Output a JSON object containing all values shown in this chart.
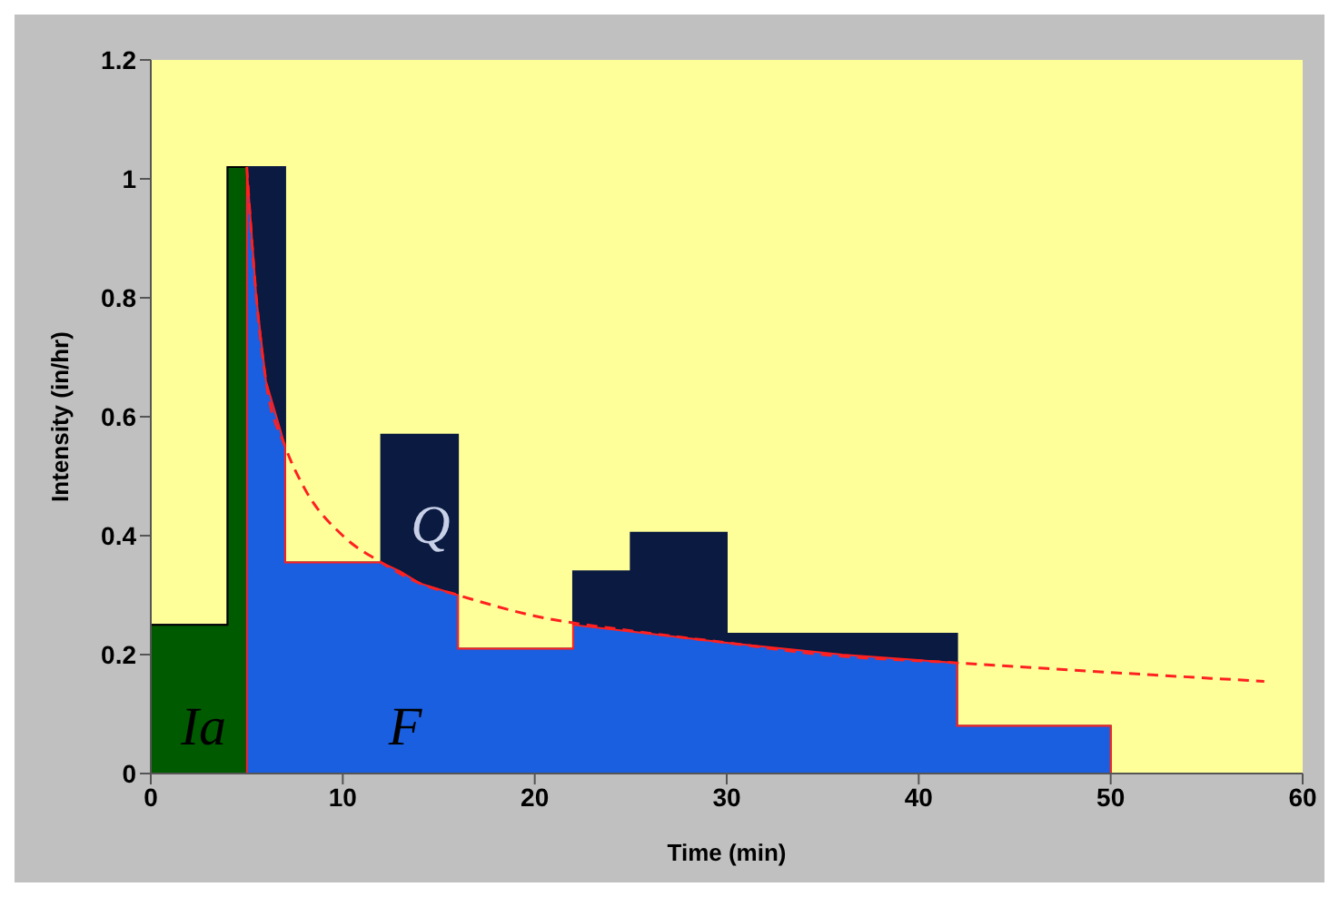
{
  "chart_data": {
    "type": "area",
    "xlabel": "Time (min)",
    "ylabel": "Intensity (in/hr)",
    "xlim": [
      0,
      60
    ],
    "xticks": [
      0,
      10,
      20,
      30,
      40,
      50,
      60
    ],
    "ylim": [
      0,
      1.2
    ],
    "yticks": [
      0,
      0.2,
      0.4,
      0.6,
      0.8,
      1,
      1.2
    ],
    "grid": false,
    "marker": "none",
    "series": [
      {
        "color": "#0a1a40",
        "x": [
          0,
          4,
          4,
          7,
          7,
          12,
          12,
          16,
          16,
          22,
          22,
          25,
          25,
          30,
          30,
          42,
          42,
          50,
          50
        ],
        "values": [
          0.25,
          0.25,
          1.02,
          1.02,
          0.355,
          0.355,
          0.57,
          0.57,
          0.21,
          0.21,
          0.34,
          0.34,
          0.405,
          0.405,
          0.235,
          0.235,
          0.08,
          0.08,
          0
        ]
      },
      {
        "color": "#005a00",
        "x": [
          0,
          4,
          4,
          5,
          5
        ],
        "values": [
          0.25,
          0.25,
          1.02,
          1.02,
          0
        ]
      },
      {
        "color": "#1a5fe0",
        "x": [
          5,
          5,
          5.5,
          6,
          7,
          7,
          12,
          13,
          14,
          16,
          16,
          22,
          22,
          26,
          30,
          36,
          42,
          42,
          50,
          50
        ],
        "values": [
          0,
          1.02,
          0.8,
          0.66,
          0.55,
          0.355,
          0.355,
          0.34,
          0.32,
          0.3,
          0.21,
          0.21,
          0.25,
          0.235,
          0.22,
          0.2,
          0.186,
          0.08,
          0.08,
          0
        ]
      },
      {
        "type": "line",
        "color": "#ff2020",
        "line_style": "dashed",
        "x": [
          5,
          5.5,
          6,
          7,
          8,
          10,
          12,
          14,
          16,
          20,
          25,
          30,
          35,
          42,
          50,
          58
        ],
        "values": [
          1.02,
          0.8,
          0.66,
          0.55,
          0.48,
          0.4,
          0.355,
          0.32,
          0.3,
          0.265,
          0.24,
          0.22,
          0.2,
          0.186,
          0.17,
          0.155
        ]
      }
    ],
    "annotations": [
      "Ia",
      "F",
      "Q"
    ]
  }
}
